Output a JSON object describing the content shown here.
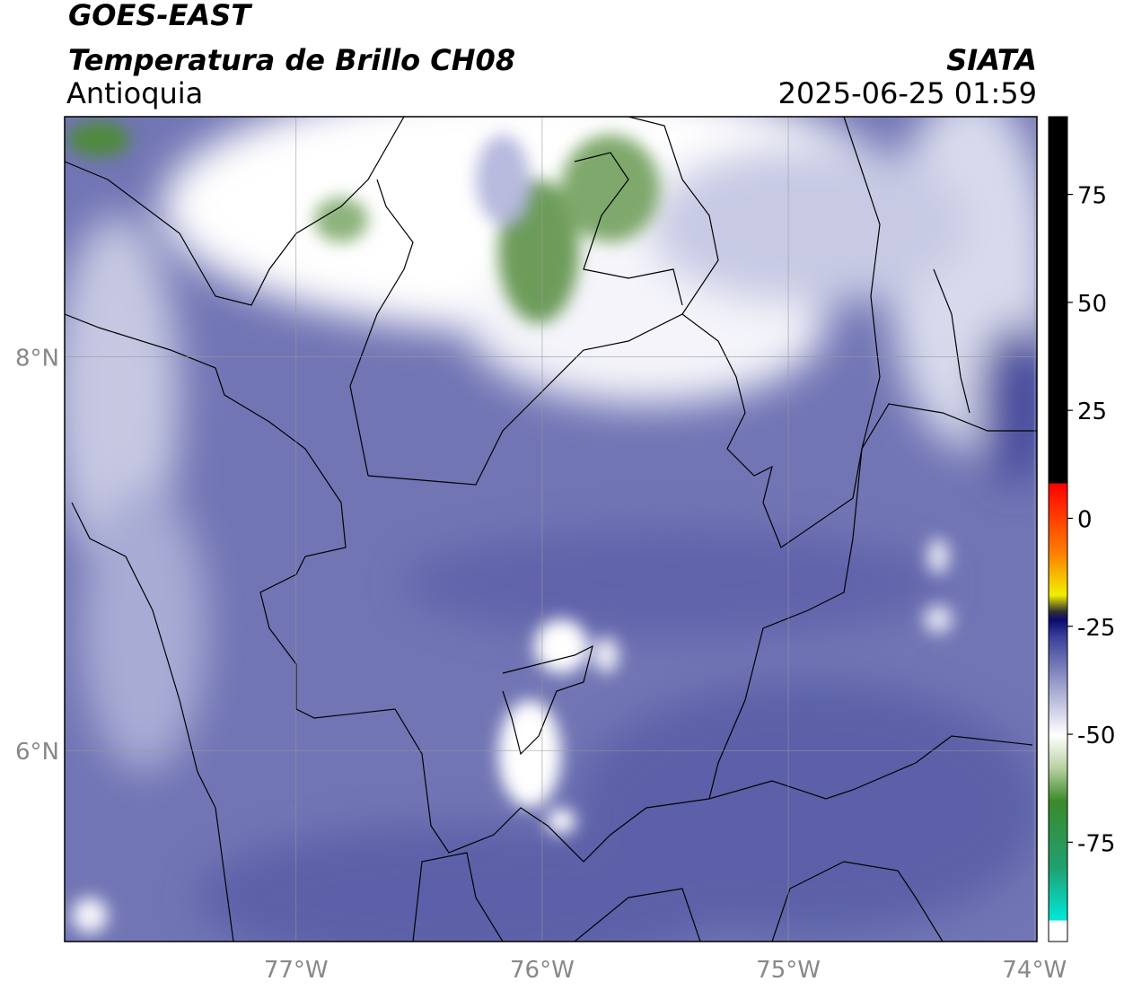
{
  "header": {
    "title": "GOES-EAST",
    "subtitle": "Temperatura de Brillo CH08",
    "region": "Antioquia",
    "source": "SIATA",
    "datetime": "2025-06-25 01:59"
  },
  "map": {
    "xlim": [
      -77.94,
      -73.99
    ],
    "ylim": [
      5.03,
      9.22
    ],
    "lon_ticks": [
      {
        "value": -77,
        "label": "77°W"
      },
      {
        "value": -76,
        "label": "76°W"
      },
      {
        "value": -75,
        "label": "75°W"
      },
      {
        "value": -74,
        "label": "74°W"
      }
    ],
    "lat_ticks": [
      {
        "value": 8,
        "label": "8°N"
      },
      {
        "value": 6,
        "label": "6°N"
      }
    ]
  },
  "colorbar": {
    "lim": [
      -98,
      93
    ],
    "ticks": [
      75,
      50,
      25,
      0,
      -25,
      -50,
      -75
    ]
  }
}
